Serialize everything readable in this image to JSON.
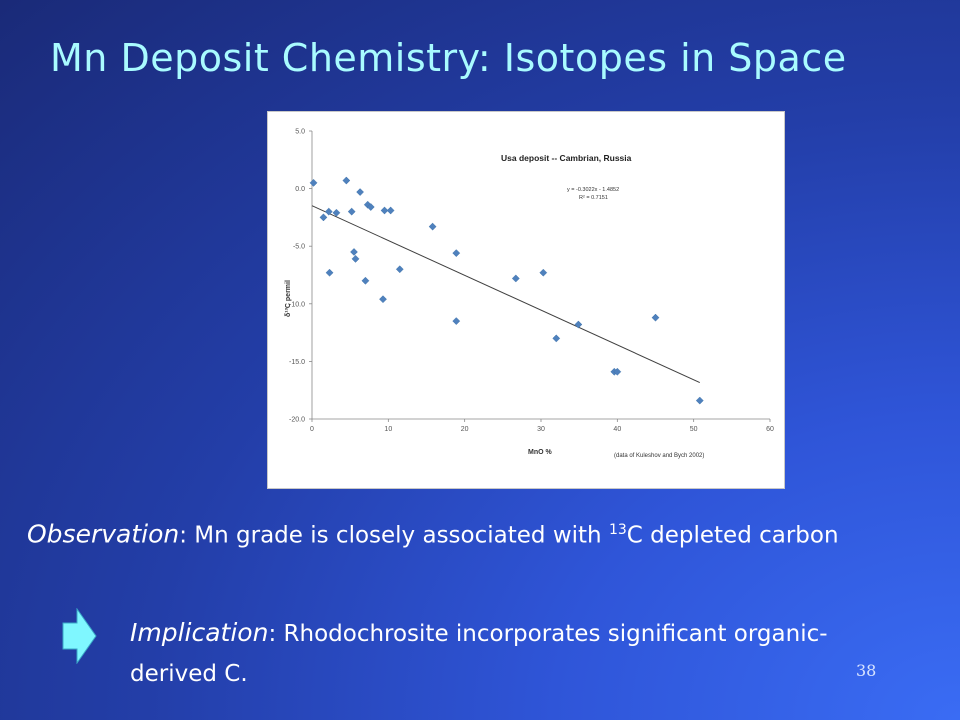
{
  "slide": {
    "title": "Mn Deposit Chemistry: Isotopes in Space",
    "observation": {
      "label": "Observation",
      "colon": ":",
      "text_before": " Mn grade is closely associated with ",
      "superscript": "13",
      "text_after": "C depleted carbon"
    },
    "implication": {
      "label": "Implication",
      "colon": ":",
      "text": " Rhodochrosite incorporates significant organic-derived C."
    },
    "page_number": "38",
    "arrow_icon": "right-arrow-icon",
    "colors": {
      "title": "#a9fbff",
      "text": "#ffffff",
      "arrow": "#7ff7ff",
      "marker": "#4f81bd",
      "trendline": "#404040"
    }
  },
  "chart_data": {
    "type": "scatter",
    "title": "Usa deposit -- Cambrian, Russia",
    "xlabel": "MnO %",
    "ylabel": "δ¹³C permil",
    "xlim": [
      0,
      60
    ],
    "ylim": [
      -20,
      5
    ],
    "x_ticks": [
      0,
      10,
      20,
      30,
      40,
      50,
      60
    ],
    "y_ticks": [
      5.0,
      0.0,
      -5.0,
      -10.0,
      -15.0,
      -20.0
    ],
    "y_tick_labels": [
      "5.0",
      "0.0",
      "-5.0",
      "-10.0",
      "-15.0",
      "-20.0"
    ],
    "grid": false,
    "legend": "none",
    "series": [
      {
        "points": [
          [
            0.2,
            0.5
          ],
          [
            1.5,
            -2.5
          ],
          [
            2.2,
            -2.0
          ],
          [
            2.3,
            -7.3
          ],
          [
            3.2,
            -2.1
          ],
          [
            4.5,
            0.7
          ],
          [
            5.2,
            -2.0
          ],
          [
            5.5,
            -5.5
          ],
          [
            5.7,
            -6.1
          ],
          [
            6.3,
            -0.3
          ],
          [
            7.0,
            -8.0
          ],
          [
            7.3,
            -1.4
          ],
          [
            7.7,
            -1.6
          ],
          [
            9.3,
            -9.6
          ],
          [
            9.5,
            -1.9
          ],
          [
            10.3,
            -1.9
          ],
          [
            11.5,
            -7.0
          ],
          [
            15.8,
            -3.3
          ],
          [
            18.9,
            -5.6
          ],
          [
            18.9,
            -11.5
          ],
          [
            26.7,
            -7.8
          ],
          [
            30.3,
            -7.3
          ],
          [
            32.0,
            -13.0
          ],
          [
            34.9,
            -11.8
          ],
          [
            39.6,
            -15.9
          ],
          [
            40.0,
            -15.9
          ],
          [
            45.0,
            -11.2
          ],
          [
            50.8,
            -18.4
          ]
        ]
      }
    ],
    "trendline": {
      "equation": "y = -0.3022x - 1.4852",
      "r_squared": "R² = 0.7151",
      "slope": -0.3022,
      "intercept": -1.4852,
      "x_range": [
        0,
        50.8
      ]
    },
    "annotation": "(data of Kuleshov and Bych 2002)"
  }
}
